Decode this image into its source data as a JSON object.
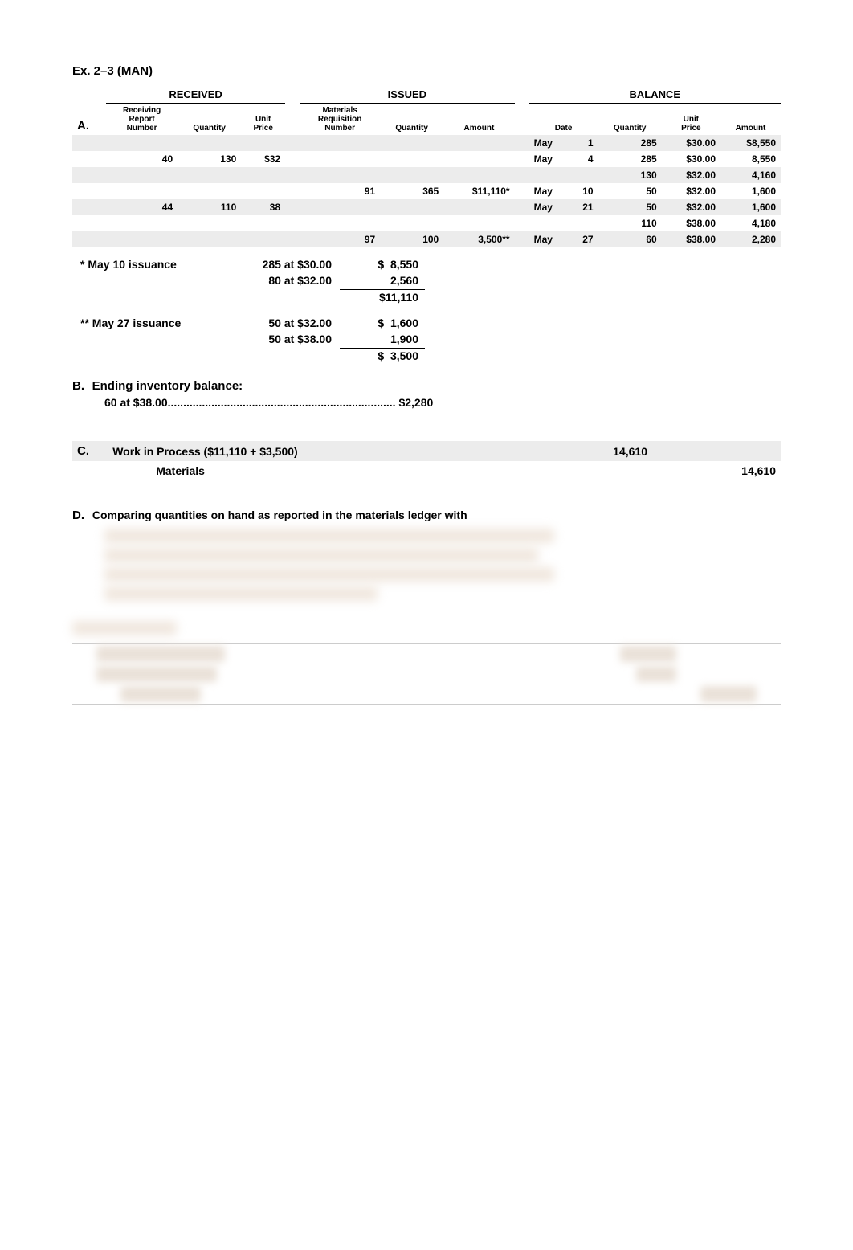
{
  "title": "Ex. 2–3 (MAN)",
  "sectionA": {
    "label": "A.",
    "groups": {
      "received": "RECEIVED",
      "issued": "ISSUED",
      "balance": "BALANCE"
    },
    "headers": {
      "recvNum": "Receiving\nReport\nNumber",
      "qty": "Quantity",
      "unitPrice": "Unit\nPrice",
      "reqNum": "Materials\nRequisition\nNumber",
      "iQty": "Quantity",
      "amount": "Amount",
      "date": "Date",
      "bQty": "Quantity",
      "bUnitPrice": "Unit\nPrice",
      "bAmount": "Amount"
    },
    "rows": [
      {
        "shade": true,
        "recvNum": "",
        "qty": "",
        "price": "",
        "reqNum": "",
        "iQty": "",
        "amt": "",
        "mon": "May",
        "day": "1",
        "bQty": "285",
        "bPrice": "$30.00",
        "bAmt": "$8,550"
      },
      {
        "shade": false,
        "recvNum": "40",
        "qty": "130",
        "price": "$32",
        "reqNum": "",
        "iQty": "",
        "amt": "",
        "mon": "May",
        "day": "4",
        "bQty": "285",
        "bPrice": "$30.00",
        "bAmt": "8,550"
      },
      {
        "shade": true,
        "recvNum": "",
        "qty": "",
        "price": "",
        "reqNum": "",
        "iQty": "",
        "amt": "",
        "mon": "",
        "day": "",
        "bQty": "130",
        "bPrice": "$32.00",
        "bAmt": "4,160"
      },
      {
        "shade": false,
        "recvNum": "",
        "qty": "",
        "price": "",
        "reqNum": "91",
        "iQty": "365",
        "amt": "$11,110*",
        "mon": "May",
        "day": "10",
        "bQty": "50",
        "bPrice": "$32.00",
        "bAmt": "1,600"
      },
      {
        "shade": true,
        "recvNum": "44",
        "qty": "110",
        "price": "38",
        "reqNum": "",
        "iQty": "",
        "amt": "",
        "mon": "May",
        "day": "21",
        "bQty": "50",
        "bPrice": "$32.00",
        "bAmt": "1,600"
      },
      {
        "shade": false,
        "recvNum": "",
        "qty": "",
        "price": "",
        "reqNum": "",
        "iQty": "",
        "amt": "",
        "mon": "",
        "day": "",
        "bQty": "110",
        "bPrice": "$38.00",
        "bAmt": "4,180"
      },
      {
        "shade": true,
        "recvNum": "",
        "qty": "",
        "price": "",
        "reqNum": "97",
        "iQty": "100",
        "amt": "3,500**",
        "mon": "May",
        "day": "27",
        "bQty": "60",
        "bPrice": "$38.00",
        "bAmt": "2,280"
      }
    ]
  },
  "issuance1": {
    "label": "* May 10 issuance",
    "lines": [
      {
        "desc": "285 at $30.00",
        "val": "$  8,550"
      },
      {
        "desc": "80 at $32.00",
        "val": "2,560"
      }
    ],
    "total": "$11,110"
  },
  "issuance2": {
    "label": "** May 27 issuance",
    "lines": [
      {
        "desc": "50 at $32.00",
        "val": "$  1,600"
      },
      {
        "desc": "50 at $38.00",
        "val": "1,900"
      }
    ],
    "total": "$  3,500"
  },
  "sectionB": {
    "label": "B.",
    "heading": "Ending inventory balance:",
    "line": "60 at $38.00.........................................................................",
    "amount": "$2,280"
  },
  "sectionC": {
    "label": "C.",
    "debitDesc": "Work in Process ($11,110 + $3,500)",
    "debitAmt": "14,610",
    "creditDesc": "Materials",
    "creditAmt": "14,610"
  },
  "sectionD": {
    "label": "D.",
    "text": "Comparing quantities on hand as reported in the materials ledger with"
  },
  "colors": {
    "shade": "#ececec",
    "text": "#000000",
    "background": "#ffffff",
    "blur": "#eae1d8"
  }
}
